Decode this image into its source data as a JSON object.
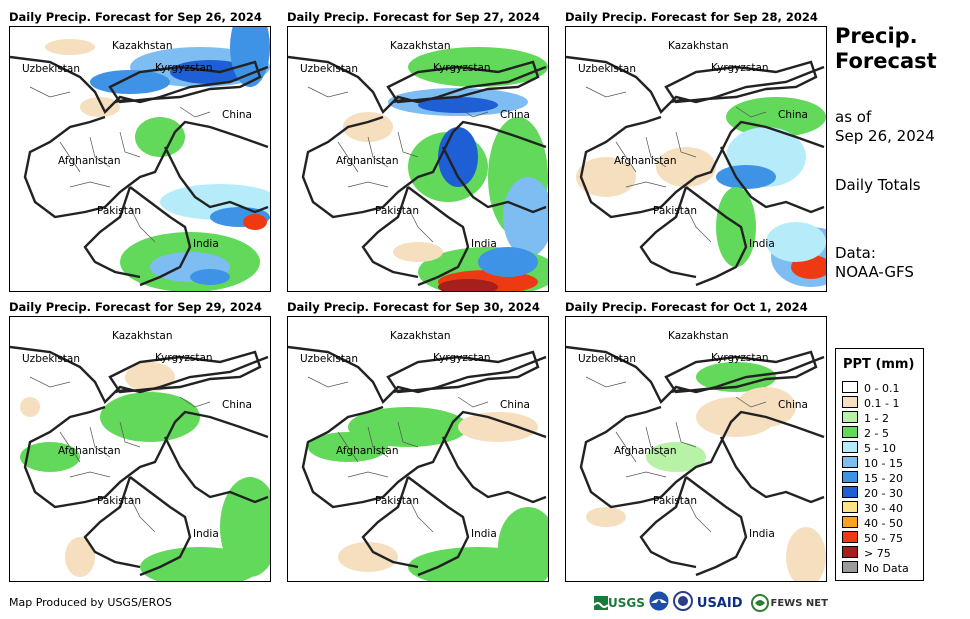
{
  "panels": [
    {
      "title": "Daily Precip. Forecast for Sep 26, 2024"
    },
    {
      "title": "Daily Precip. Forecast for Sep 27, 2024"
    },
    {
      "title": "Daily Precip. Forecast for Sep 28, 2024"
    },
    {
      "title": "Daily Precip. Forecast for Sep 29, 2024"
    },
    {
      "title": "Daily Precip. Forecast for Sep 30, 2024"
    },
    {
      "title": "Daily Precip. Forecast for Oct 1, 2024"
    }
  ],
  "map_labels": {
    "kazakhstan": "Kazakhstan",
    "uzbekistan": "Uzbekistan",
    "kyrgyzstan": "Kyrgyzstan",
    "china": "China",
    "afghanistan": "Afghanistan",
    "pakistan": "Pakistan",
    "india": "India"
  },
  "side": {
    "title_line1": "Precip.",
    "title_line2": "Forecast",
    "asof_line1": "as of",
    "asof_line2": "Sep 26, 2024",
    "daily_totals": "Daily Totals",
    "data_line1": "Data:",
    "data_line2": "NOAA-GFS"
  },
  "legend": {
    "title": "PPT (mm)",
    "items": [
      {
        "label": "0 - 0.1",
        "color": "#ffffff"
      },
      {
        "label": "0.1 - 1",
        "color": "#f5dfbf"
      },
      {
        "label": "1 - 2",
        "color": "#b7f2a6"
      },
      {
        "label": "2 - 5",
        "color": "#62d95a"
      },
      {
        "label": "5 - 10",
        "color": "#b6ecf9"
      },
      {
        "label": "10 - 15",
        "color": "#7dbdf2"
      },
      {
        "label": "15 - 20",
        "color": "#3f93e6"
      },
      {
        "label": "20 - 30",
        "color": "#1f5fd6"
      },
      {
        "label": "30 - 40",
        "color": "#fce38a"
      },
      {
        "label": "40 - 50",
        "color": "#f9a21b"
      },
      {
        "label": "50 - 75",
        "color": "#ee3a12"
      },
      {
        "label": "> 75",
        "color": "#a5201c"
      },
      {
        "label": "No Data",
        "color": "#9a9a9a"
      }
    ]
  },
  "credit": "Map Produced by USGS/EROS",
  "logos": {
    "usgs": "USGS",
    "usaid": "USAID",
    "fewsnet": "FEWS NET"
  }
}
